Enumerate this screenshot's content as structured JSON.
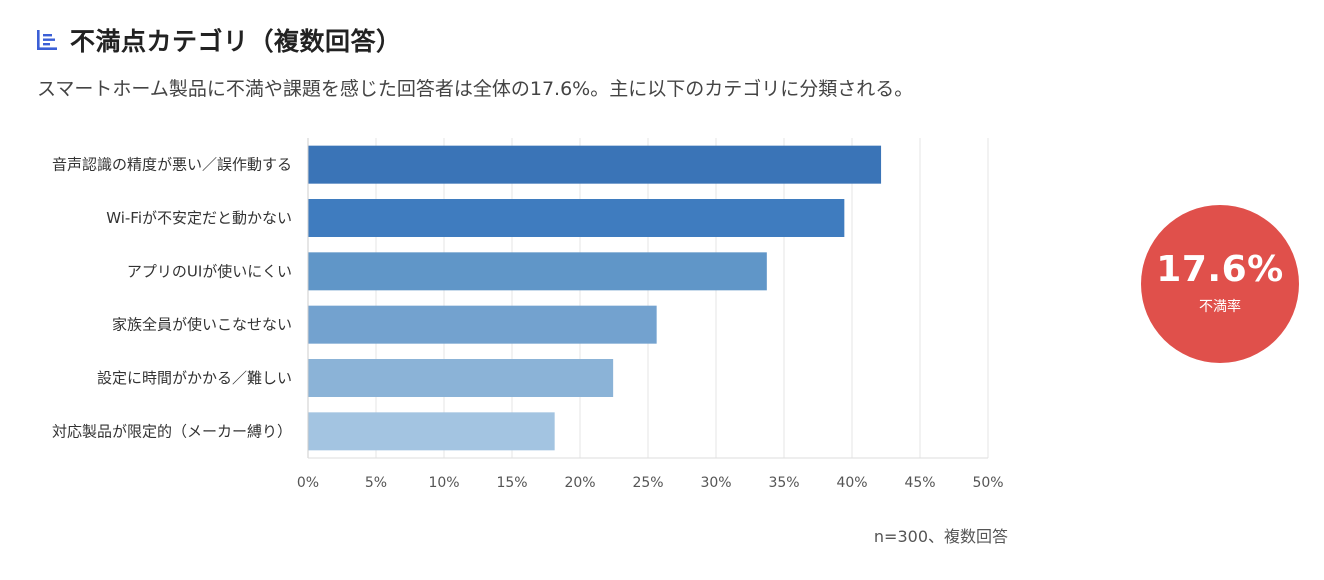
{
  "header": {
    "icon": "bar-chart-icon",
    "title": "不満点カテゴリ（複数回答）",
    "accent_color": "#3B5FD6"
  },
  "subtitle": "スマートホーム製品に不満や課題を感じた回答者は全体の17.6%。主に以下のカテゴリに分類される。",
  "chart_data": {
    "type": "bar",
    "orientation": "horizontal",
    "categories": [
      "音声認識の精度が悪い／誤作動する",
      "Wi-Fiが不安定だと動かない",
      "アプリのUIが使いにくい",
      "家族全員が使いこなせない",
      "設定に時間がかかる／難しい",
      "対応製品が限定的（メーカー縛り）"
    ],
    "values": [
      42.1,
      39.4,
      33.7,
      25.6,
      22.4,
      18.1
    ],
    "xlim": [
      0,
      50
    ],
    "xticks": [
      "0%",
      "5%",
      "10%",
      "15%",
      "20%",
      "25%",
      "30%",
      "35%",
      "40%",
      "45%",
      "50%"
    ],
    "grid": true,
    "legend": "none",
    "bar_colors": [
      "#3a74b7",
      "#3f7cbf",
      "#6096c8",
      "#73a2cf",
      "#8bb3d7",
      "#a3c4e1"
    ]
  },
  "kpi": {
    "value": "17.6%",
    "label": "不満率",
    "color": "#E0504B"
  },
  "note": "n=300、複数回答"
}
